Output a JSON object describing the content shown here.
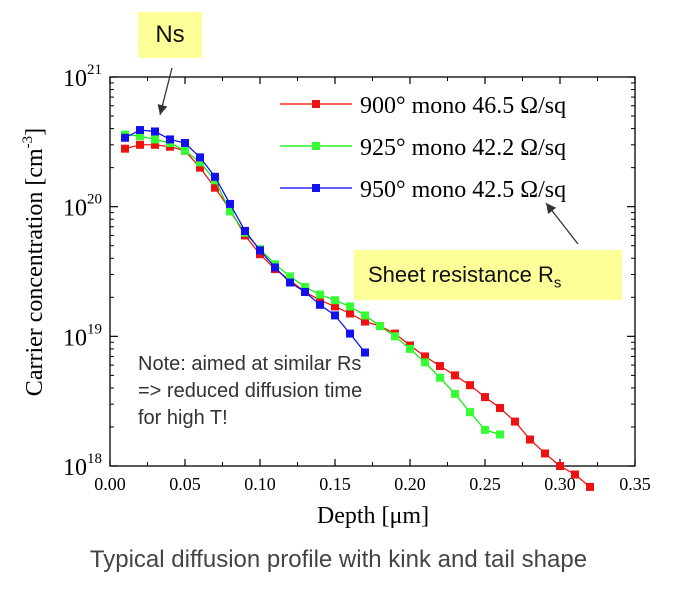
{
  "callouts": {
    "ns": "Ns",
    "sheet_resistance": "Sheet resistance R",
    "sheet_resistance_sub": "s"
  },
  "note": {
    "lines": [
      "Note: aimed at similar Rs",
      "=> reduced diffusion time",
      "for high T!"
    ]
  },
  "caption": "Typical diffusion profile with kink and tail shape",
  "chart_data": {
    "type": "line",
    "xlabel": "Depth [μm]",
    "ylabel": "Carrier concentration [cm",
    "ylabel_sup": "-3",
    "ylabel_close": "]",
    "xlim": [
      0,
      0.35
    ],
    "ylim_exponent": [
      18,
      21
    ],
    "yscale": "log",
    "grid": false,
    "legend_position": "top-right",
    "x_ticks": [
      "0.00",
      "0.05",
      "0.10",
      "0.15",
      "0.20",
      "0.25",
      "0.30",
      "0.35"
    ],
    "y_ticks": [
      {
        "base": "10",
        "exp": "18"
      },
      {
        "base": "10",
        "exp": "19"
      },
      {
        "base": "10",
        "exp": "20"
      },
      {
        "base": "10",
        "exp": "21"
      }
    ],
    "series": [
      {
        "name": "900° mono 46.5 Ω/sq",
        "color": "#ff0000",
        "marker_color": "#ee1111",
        "x": [
          0.01,
          0.02,
          0.03,
          0.04,
          0.05,
          0.06,
          0.07,
          0.08,
          0.09,
          0.1,
          0.11,
          0.12,
          0.13,
          0.14,
          0.15,
          0.16,
          0.17,
          0.18,
          0.19,
          0.2,
          0.21,
          0.22,
          0.23,
          0.24,
          0.25,
          0.26,
          0.27,
          0.28,
          0.29,
          0.3,
          0.31,
          0.32
        ],
        "y": [
          2.8e+20,
          3e+20,
          3e+20,
          2.9e+20,
          2.7e+20,
          2e+20,
          1.4e+20,
          9.5e+19,
          6e+19,
          4.3e+19,
          3.3e+19,
          2.7e+19,
          2.2e+19,
          1.9e+19,
          1.7e+19,
          1.5e+19,
          1.3e+19,
          1.2e+19,
          1.05e+19,
          8.5e+18,
          7e+18,
          5.9e+18,
          5e+18,
          4.2e+18,
          3.4e+18,
          2.8e+18,
          2.2e+18,
          1.6e+18,
          1.25e+18,
          1e+18,
          8.6e+17,
          6.9e+17
        ]
      },
      {
        "name": "925° mono 42.2 Ω/sq",
        "color": "#00ee00",
        "marker_color": "#33ff33",
        "x": [
          0.01,
          0.02,
          0.03,
          0.04,
          0.05,
          0.06,
          0.07,
          0.08,
          0.09,
          0.1,
          0.11,
          0.12,
          0.13,
          0.14,
          0.15,
          0.16,
          0.17,
          0.18,
          0.19,
          0.2,
          0.21,
          0.22,
          0.23,
          0.24,
          0.25,
          0.26
        ],
        "y": [
          3.6e+20,
          3.5e+20,
          3.3e+20,
          3.1e+20,
          2.7e+20,
          2.2e+20,
          1.6e+20,
          9.2e+19,
          6.3e+19,
          4.7e+19,
          3.6e+19,
          2.9e+19,
          2.4e+19,
          2.1e+19,
          1.9e+19,
          1.7e+19,
          1.45e+19,
          1.2e+19,
          1e+19,
          8e+18,
          6.3e+18,
          4.8e+18,
          3.6e+18,
          2.6e+18,
          1.9e+18,
          1.75e+18
        ]
      },
      {
        "name": "950° mono 42.5 Ω/sq",
        "color": "#0000ff",
        "marker_color": "#1111ee",
        "x": [
          0.01,
          0.02,
          0.03,
          0.04,
          0.05,
          0.06,
          0.07,
          0.08,
          0.09,
          0.1,
          0.11,
          0.12,
          0.13,
          0.14,
          0.15,
          0.16,
          0.17
        ],
        "y": [
          3.4e+20,
          3.9e+20,
          3.8e+20,
          3.3e+20,
          3.1e+20,
          2.4e+20,
          1.7e+20,
          1.05e+20,
          6.5e+19,
          4.6e+19,
          3.4e+19,
          2.6e+19,
          2.2e+19,
          1.75e+19,
          1.45e+19,
          1.05e+19,
          7.5e+18
        ]
      }
    ]
  }
}
